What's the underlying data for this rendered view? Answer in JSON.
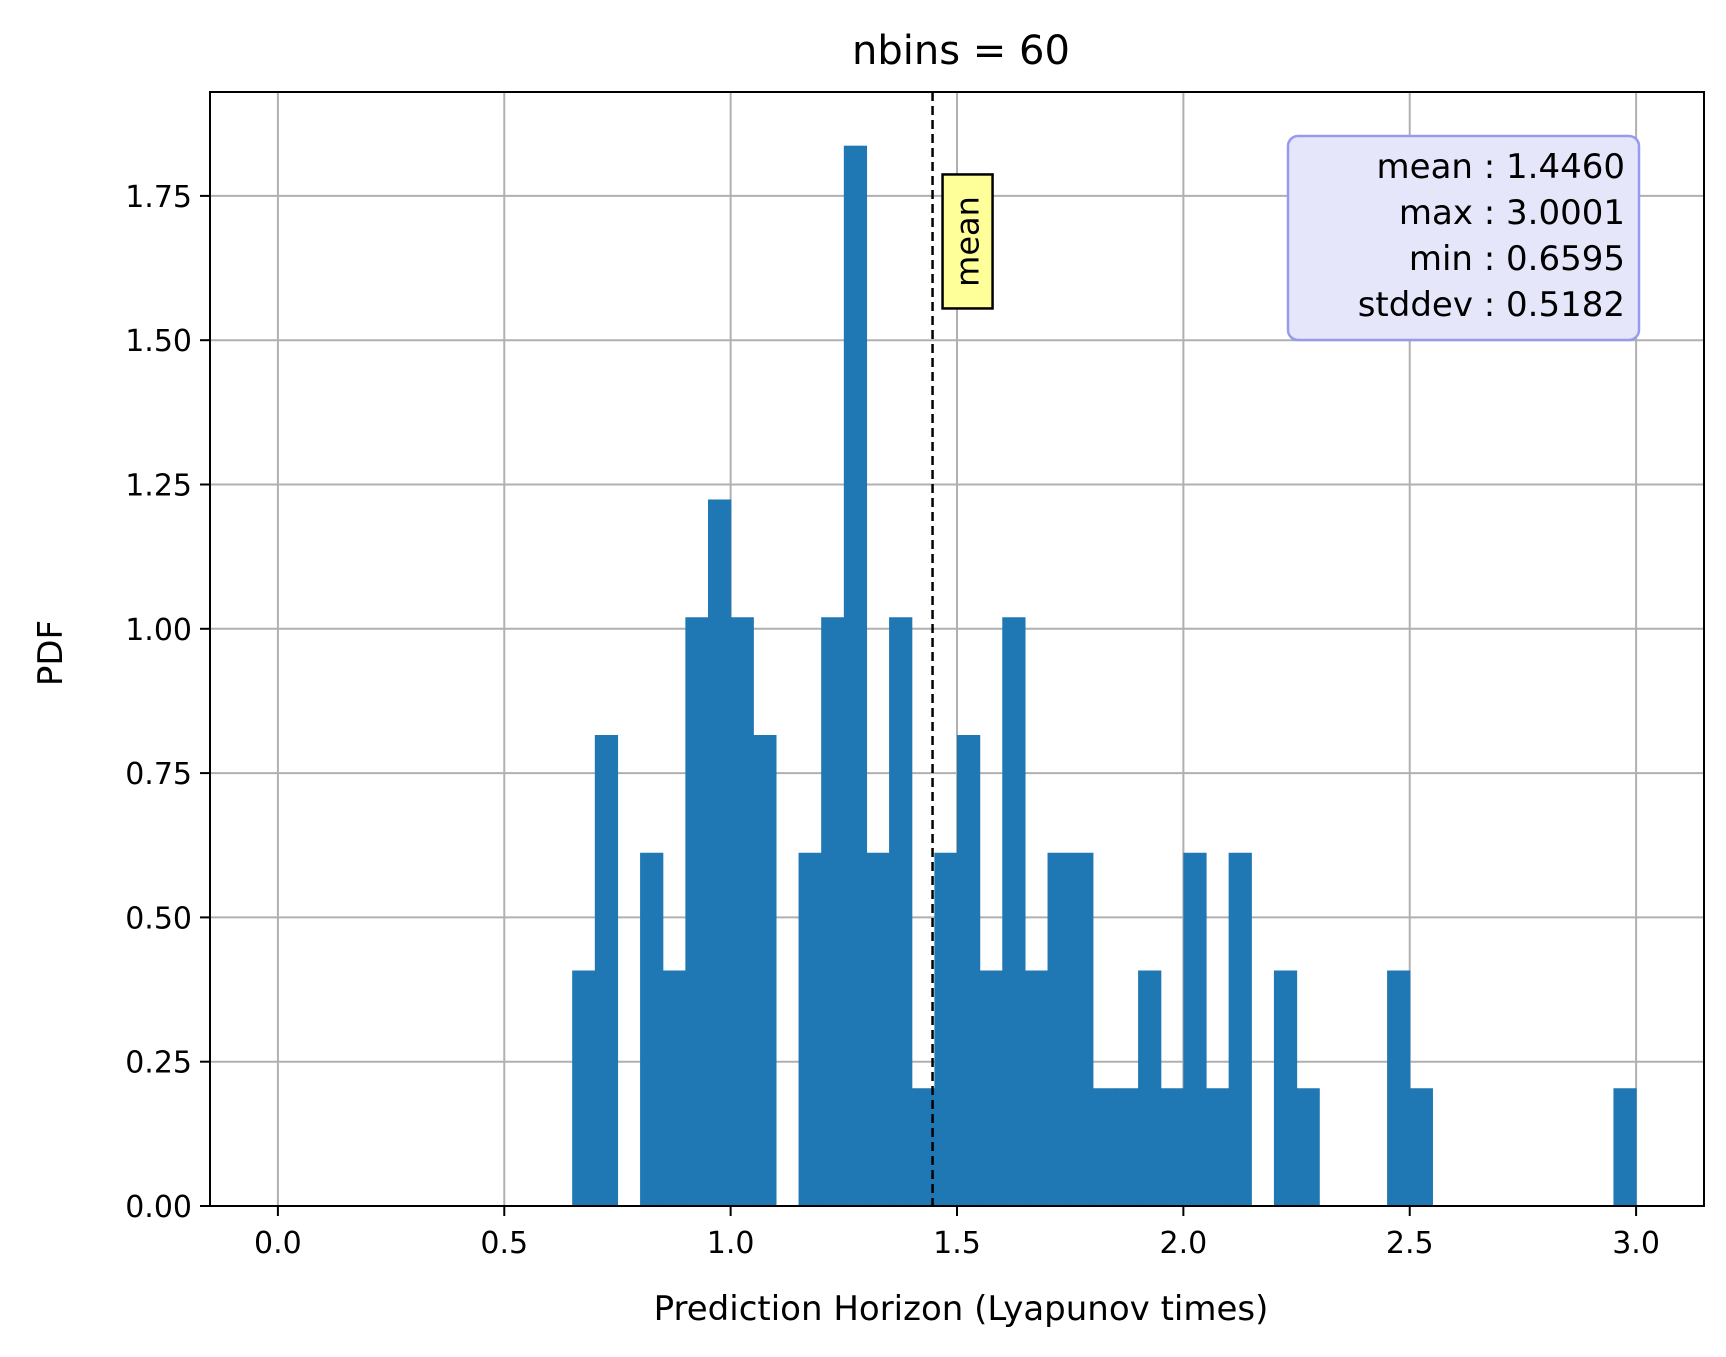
{
  "chart_data": {
    "type": "bar",
    "title": "nbins = 60",
    "xlabel": "Prediction Horizon (Lyapunov times)",
    "ylabel": "PDF",
    "xlim": [
      -0.15,
      3.15
    ],
    "ylim": [
      0,
      1.93
    ],
    "grid": true,
    "bin_width": 0.05,
    "bin_starts": [
      0.65,
      0.7,
      0.8,
      0.85,
      0.9,
      0.95,
      1.0,
      1.05,
      1.15,
      1.2,
      1.25,
      1.3,
      1.35,
      1.4,
      1.45,
      1.5,
      1.55,
      1.6,
      1.65,
      1.7,
      1.75,
      1.8,
      1.85,
      1.9,
      1.95,
      2.0,
      2.05,
      2.1,
      2.2,
      2.25,
      2.45,
      2.5,
      2.95
    ],
    "values": [
      0.408,
      0.816,
      0.612,
      0.408,
      1.02,
      1.224,
      1.02,
      0.816,
      0.612,
      1.02,
      1.837,
      0.612,
      1.02,
      0.204,
      0.612,
      0.816,
      0.408,
      1.02,
      0.408,
      0.612,
      0.612,
      0.204,
      0.204,
      0.408,
      0.204,
      0.612,
      0.204,
      0.612,
      0.408,
      0.204,
      0.408,
      0.204,
      0.204
    ],
    "bar_color": "#1f77b4",
    "x_ticks": [
      {
        "value": 0.0,
        "label": "0.0"
      },
      {
        "value": 0.5,
        "label": "0.5"
      },
      {
        "value": 1.0,
        "label": "1.0"
      },
      {
        "value": 1.5,
        "label": "1.5"
      },
      {
        "value": 2.0,
        "label": "2.0"
      },
      {
        "value": 2.5,
        "label": "2.5"
      },
      {
        "value": 3.0,
        "label": "3.0"
      }
    ],
    "y_ticks": [
      {
        "value": 0.0,
        "label": "0.00"
      },
      {
        "value": 0.25,
        "label": "0.25"
      },
      {
        "value": 0.5,
        "label": "0.50"
      },
      {
        "value": 0.75,
        "label": "0.75"
      },
      {
        "value": 1.0,
        "label": "1.00"
      },
      {
        "value": 1.25,
        "label": "1.25"
      },
      {
        "value": 1.5,
        "label": "1.50"
      },
      {
        "value": 1.75,
        "label": "1.75"
      }
    ],
    "mean_line": {
      "x": 1.446,
      "label": "mean",
      "label_bg": "#ffff99",
      "label_y": 1.555
    },
    "stats_box": {
      "lines": [
        "mean : 1.4460",
        "max : 3.0001",
        "min : 0.6595",
        "stddev : 0.5182"
      ],
      "background": "#e6e6fa",
      "border": "#9999ee",
      "placement": "upper-right"
    }
  }
}
